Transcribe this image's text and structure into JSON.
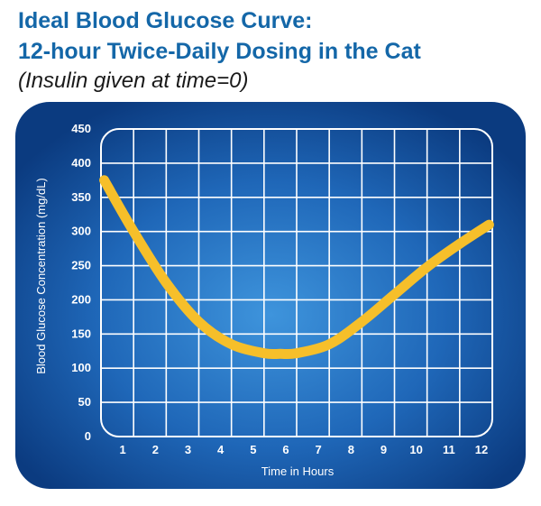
{
  "header": {
    "title_line1": "Ideal Blood Glucose Curve:",
    "title_line2": "12-hour Twice-Daily Dosing in the Cat",
    "subtitle": "(Insulin given at time=0)"
  },
  "colors": {
    "panel_dark": "#0c3f86",
    "panel_light": "#3c8fd6",
    "grid": "#ffffff",
    "curve": "#f6bf2a",
    "title": "#1467a8"
  },
  "chart_data": {
    "type": "line",
    "title": "Ideal Blood Glucose Curve: 12-hour Twice-Daily Dosing in the Cat",
    "subtitle": "(Insulin given at time=0)",
    "xlabel": "Time in Hours",
    "ylabel": "Blood Glucose Concentration (mg/dL)",
    "xlim": [
      0,
      12
    ],
    "ylim": [
      0,
      450
    ],
    "x_ticks": [
      1,
      2,
      3,
      4,
      5,
      6,
      7,
      8,
      9,
      10,
      11,
      12
    ],
    "y_ticks": [
      0,
      50,
      100,
      150,
      200,
      250,
      300,
      350,
      400,
      450
    ],
    "grid": true,
    "series": [
      {
        "name": "Blood glucose",
        "x": [
          0.1,
          1,
          2,
          3,
          4,
          5,
          5.5,
          6,
          7,
          8,
          9,
          10,
          11,
          11.9
        ],
        "values": [
          375,
          300,
          225,
          168,
          135,
          122,
          121,
          122,
          135,
          168,
          208,
          248,
          282,
          310
        ]
      }
    ]
  }
}
